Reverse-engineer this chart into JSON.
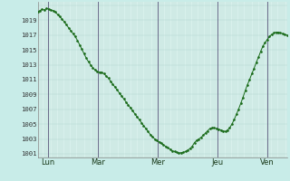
{
  "background_color": "#c8ece8",
  "plot_bg_color": "#d8f0ec",
  "line_color": "#1a6b1a",
  "grid_color": "#b0d4ce",
  "vline_color": "#6a6a8a",
  "border_color": "#2a5a2a",
  "ylabel_color": "#333333",
  "xlabel_color": "#1a3a1a",
  "ylim": [
    1000.5,
    1021.5
  ],
  "yticks": [
    1001,
    1003,
    1005,
    1007,
    1009,
    1011,
    1013,
    1015,
    1017,
    1019
  ],
  "day_labels": [
    "Lun",
    "Mar",
    "Mer",
    "Jeu",
    "Ven"
  ],
  "day_positions": [
    0.04,
    0.24,
    0.48,
    0.72,
    0.92
  ],
  "xlim": [
    0.0,
    1.0
  ],
  "pressure_data": [
    1020.2,
    1020.3,
    1020.5,
    1020.4,
    1020.6,
    1020.5,
    1020.4,
    1020.3,
    1020.1,
    1019.8,
    1019.5,
    1019.2,
    1018.8,
    1018.4,
    1018.0,
    1017.6,
    1017.2,
    1016.8,
    1016.3,
    1015.7,
    1015.1,
    1014.5,
    1013.9,
    1013.4,
    1013.0,
    1012.6,
    1012.3,
    1012.1,
    1012.0,
    1012.0,
    1011.8,
    1011.5,
    1011.2,
    1010.8,
    1010.4,
    1010.0,
    1009.6,
    1009.2,
    1008.8,
    1008.4,
    1008.0,
    1007.6,
    1007.2,
    1006.8,
    1006.4,
    1006.0,
    1005.6,
    1005.2,
    1004.8,
    1004.4,
    1004.0,
    1003.6,
    1003.3,
    1003.0,
    1002.8,
    1002.6,
    1002.4,
    1002.2,
    1002.0,
    1001.8,
    1001.6,
    1001.4,
    1001.3,
    1001.2,
    1001.1,
    1001.15,
    1001.2,
    1001.3,
    1001.5,
    1001.7,
    1002.0,
    1002.5,
    1002.8,
    1003.0,
    1003.2,
    1003.5,
    1003.8,
    1004.1,
    1004.4,
    1004.5,
    1004.5,
    1004.4,
    1004.3,
    1004.2,
    1004.1,
    1004.0,
    1004.2,
    1004.5,
    1005.0,
    1005.6,
    1006.3,
    1007.0,
    1007.8,
    1008.6,
    1009.5,
    1010.3,
    1011.0,
    1011.8,
    1012.5,
    1013.3,
    1014.0,
    1014.8,
    1015.5,
    1016.0,
    1016.4,
    1016.8,
    1017.1,
    1017.3,
    1017.4,
    1017.4,
    1017.3,
    1017.2,
    1017.1,
    1017.0
  ],
  "figsize": [
    3.2,
    2.0
  ],
  "dpi": 100
}
